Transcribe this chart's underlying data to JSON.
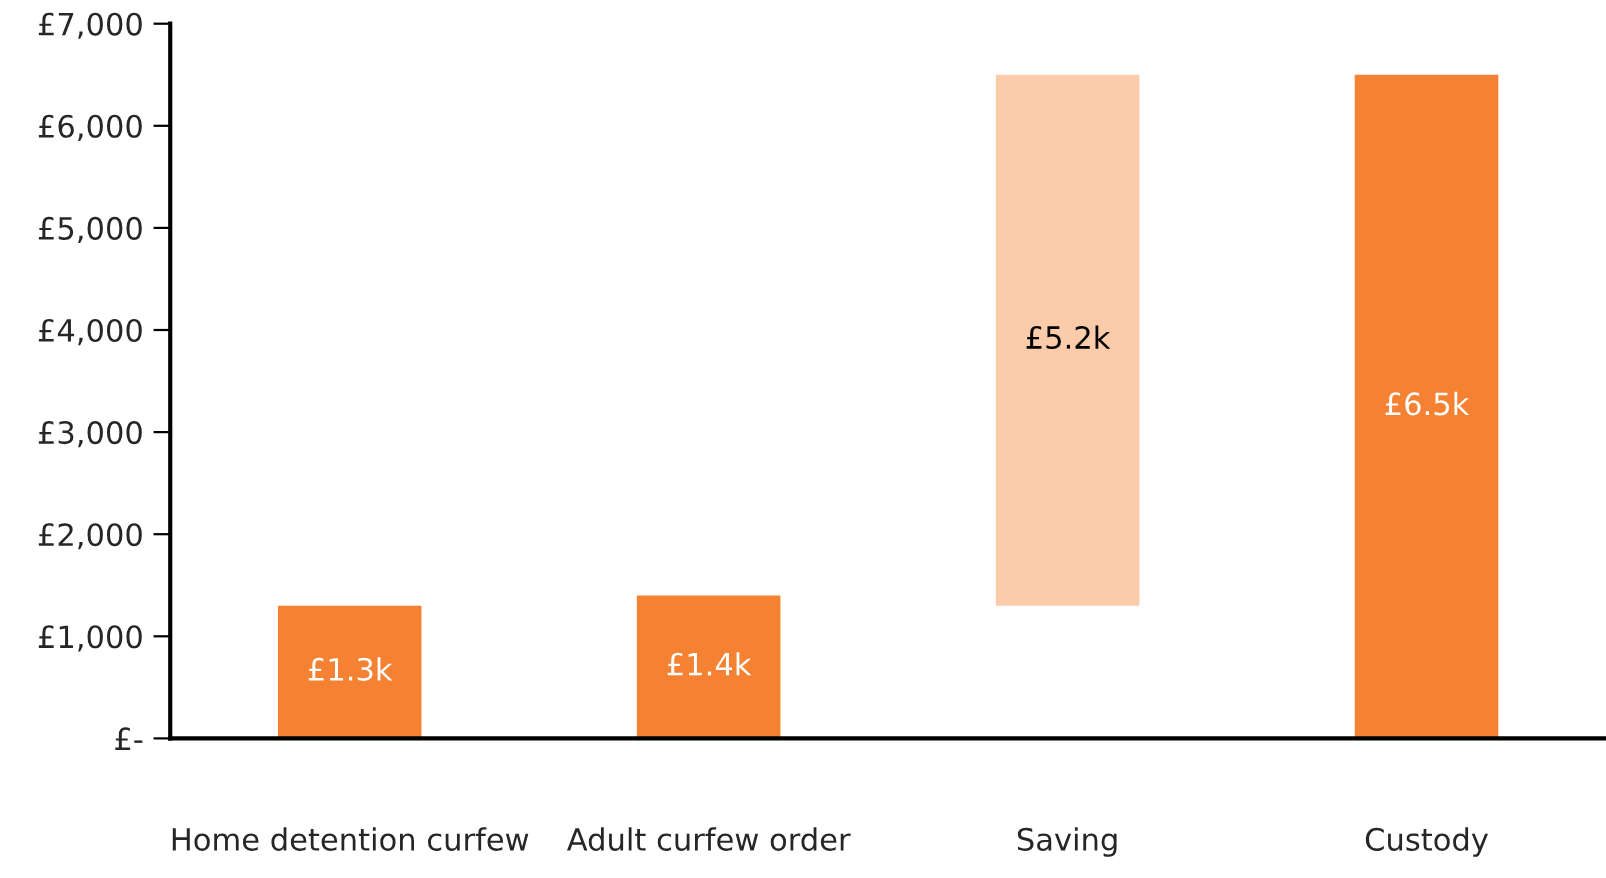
{
  "chart_data": {
    "type": "bar",
    "categories": [
      "Home detention curfew",
      "Adult curfew order",
      "Saving",
      "Custody"
    ],
    "values": [
      1300,
      1400,
      5200,
      6500
    ],
    "base": [
      0,
      0,
      1300,
      0
    ],
    "colors": [
      "#f58233",
      "#f58233",
      "#fbcbaa",
      "#f58233"
    ],
    "value_labels": [
      "£1.3k",
      "£1.4k",
      "£5.2k",
      "£6.5k"
    ],
    "ylim": [
      0,
      7000
    ],
    "yticks": [
      {
        "value": 0,
        "label": "£-"
      },
      {
        "value": 1000,
        "label": "£1,000"
      },
      {
        "value": 2000,
        "label": "£2,000"
      },
      {
        "value": 3000,
        "label": "£3,000"
      },
      {
        "value": 4000,
        "label": "£4,000"
      },
      {
        "value": 5000,
        "label": "£5,000"
      },
      {
        "value": 6000,
        "label": "£6,000"
      },
      {
        "value": 7000,
        "label": "£7,000"
      }
    ],
    "grid": false,
    "legend": false
  }
}
